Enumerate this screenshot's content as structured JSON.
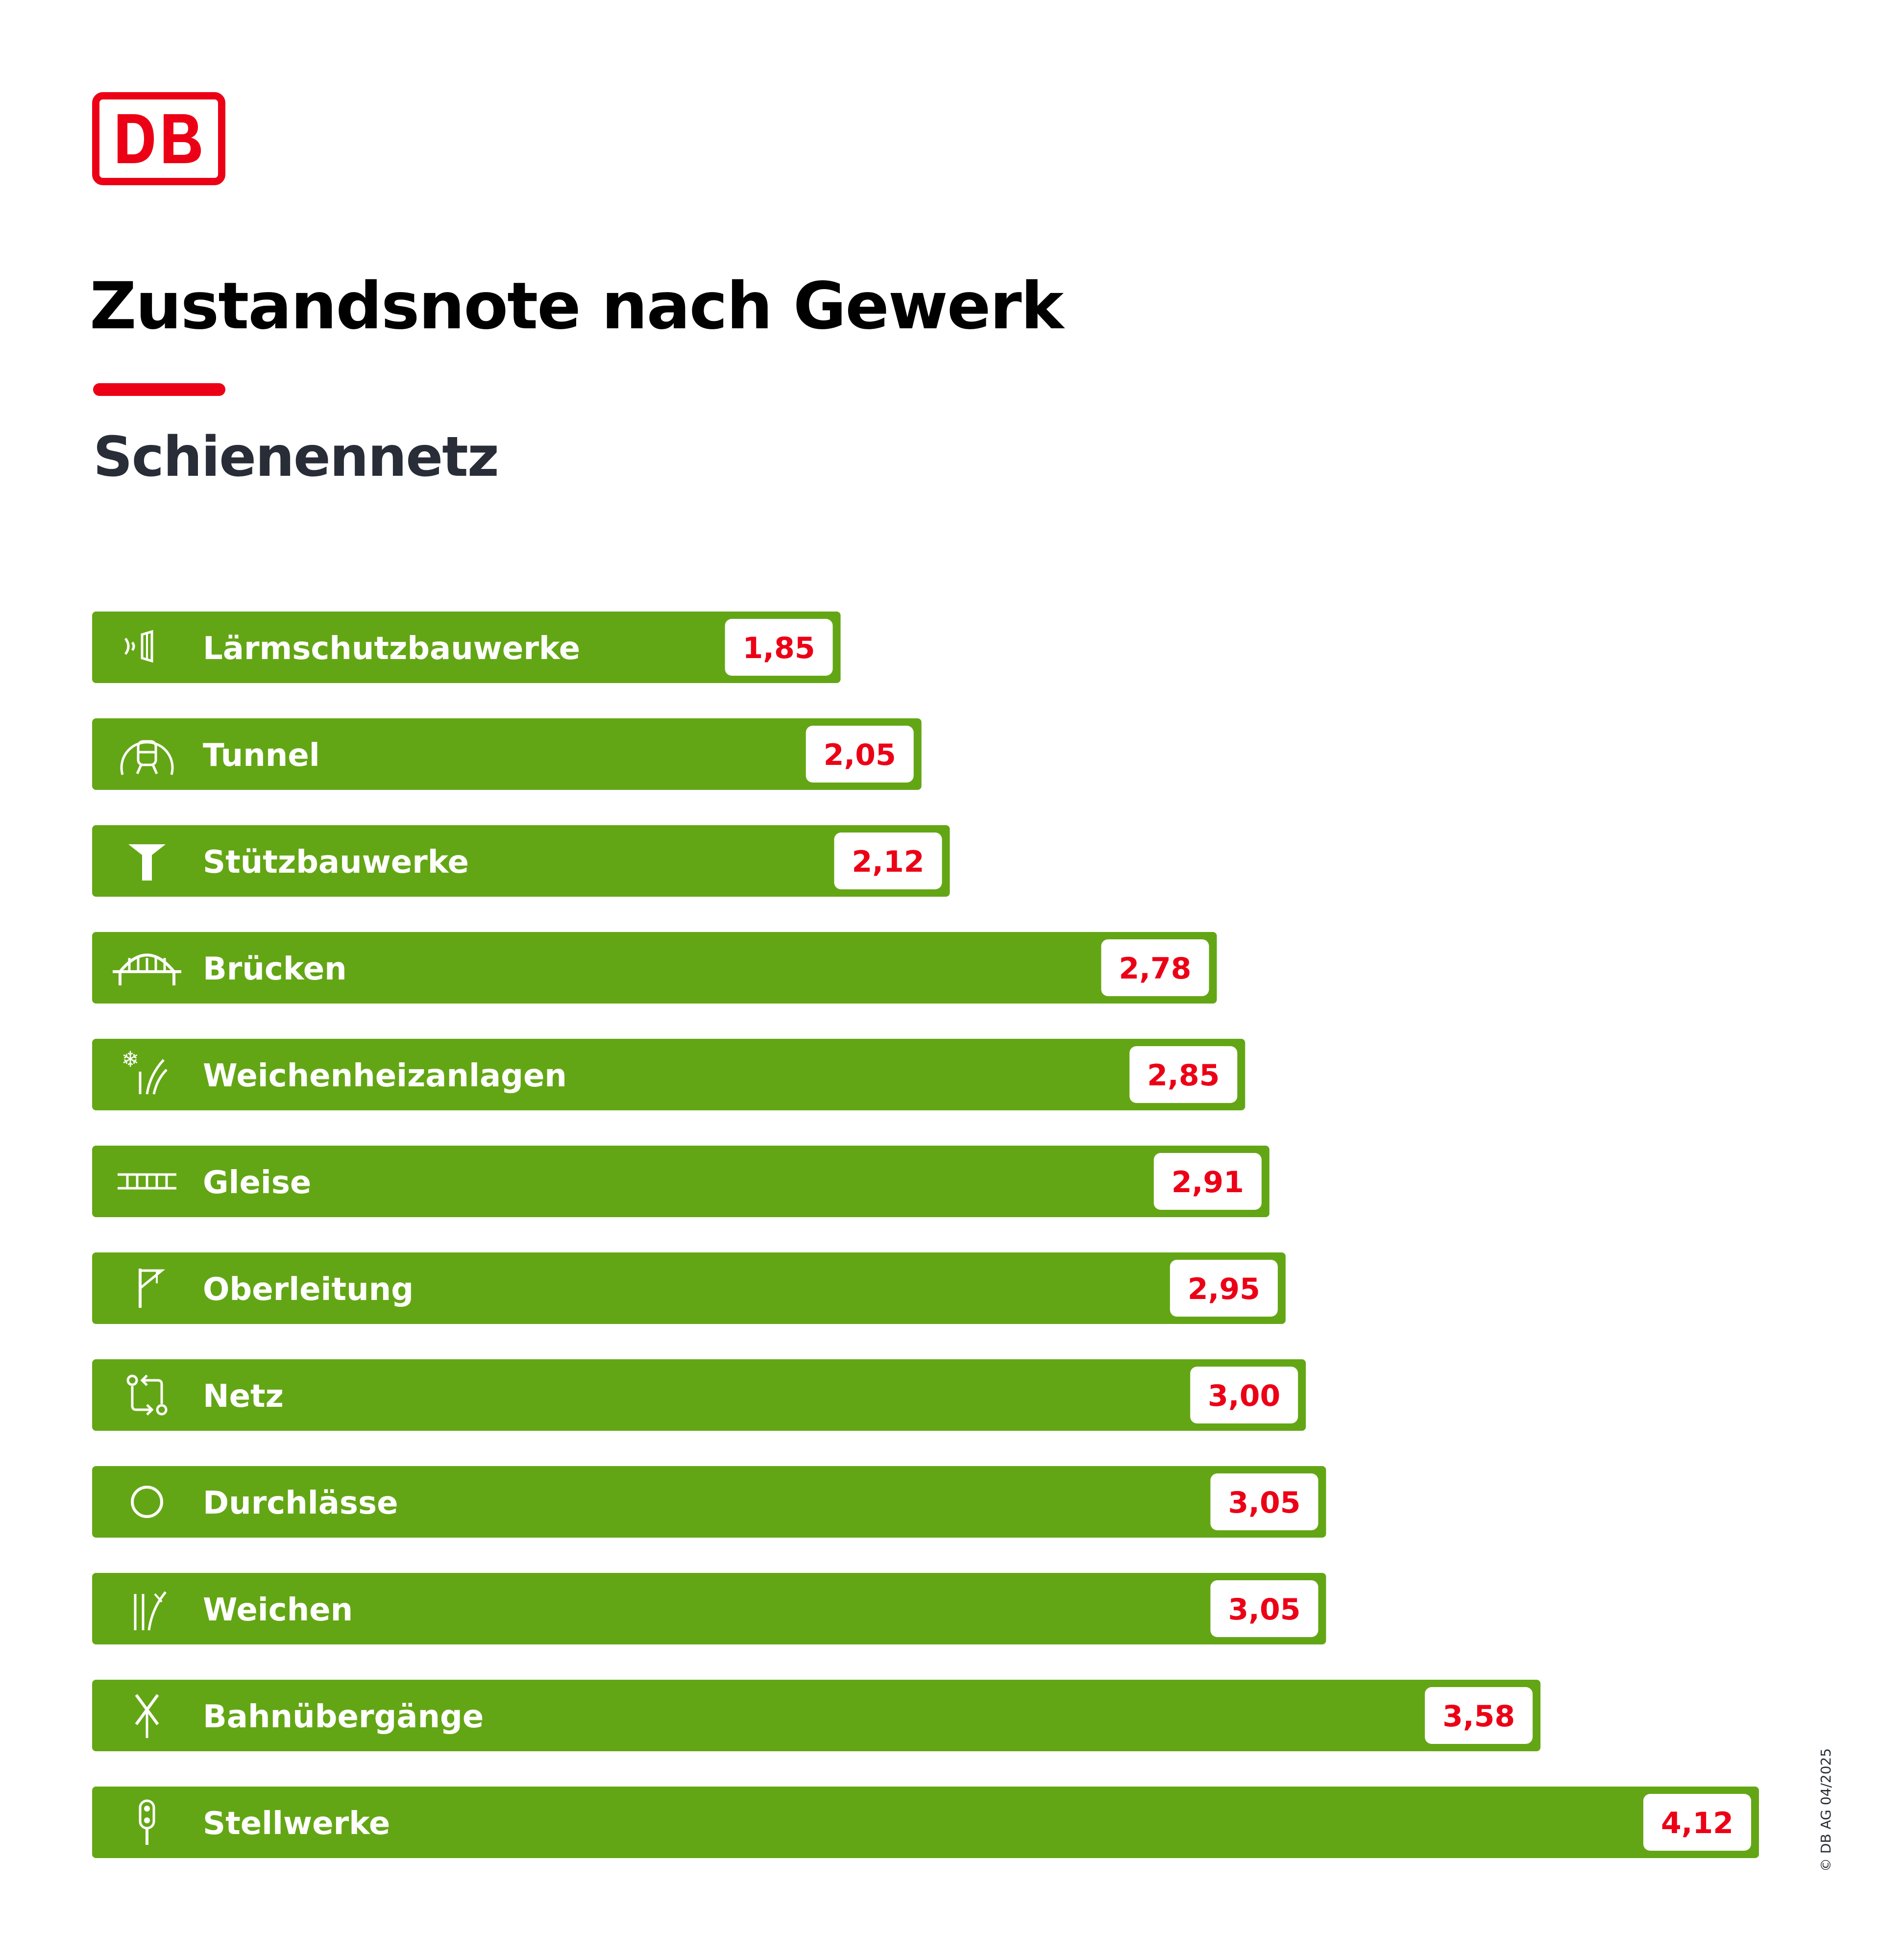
{
  "logo": {
    "text": "DB"
  },
  "title": "Zustandsnote nach Gewerk",
  "subtitle": "Schienennetz",
  "copyright": "© DB AG 04/2025",
  "colors": {
    "bar": "#63a615",
    "value": "#ec0016",
    "accent": "#ec0016"
  },
  "chart_data": {
    "type": "bar",
    "orientation": "horizontal",
    "title": "Zustandsnote nach Gewerk",
    "subtitle": "Schienennetz",
    "categories": [
      "Lärmschutzbauwerke",
      "Tunnel",
      "Stützbauwerke",
      "Brücken",
      "Weichenheizanlagen",
      "Gleise",
      "Oberleitung",
      "Netz",
      "Durchlässe",
      "Weichen",
      "Bahnübergänge",
      "Stellwerke"
    ],
    "values": [
      1.85,
      2.05,
      2.12,
      2.78,
      2.85,
      2.91,
      2.95,
      3.0,
      3.05,
      3.05,
      3.58,
      4.12
    ],
    "value_labels": [
      "1,85",
      "2,05",
      "2,12",
      "2,78",
      "2,85",
      "2,91",
      "2,95",
      "3,00",
      "3,05",
      "3,05",
      "3,58",
      "4,12"
    ],
    "icons": [
      "noise-barrier-icon",
      "tunnel-icon",
      "retaining-wall-icon",
      "bridge-icon",
      "switch-heating-icon",
      "track-icon",
      "catenary-icon",
      "network-icon",
      "culvert-icon",
      "switch-icon",
      "level-crossing-icon",
      "signal-box-icon"
    ],
    "xlabel": "",
    "ylabel": "",
    "xlim": [
      0,
      4.12
    ],
    "grid": false
  }
}
